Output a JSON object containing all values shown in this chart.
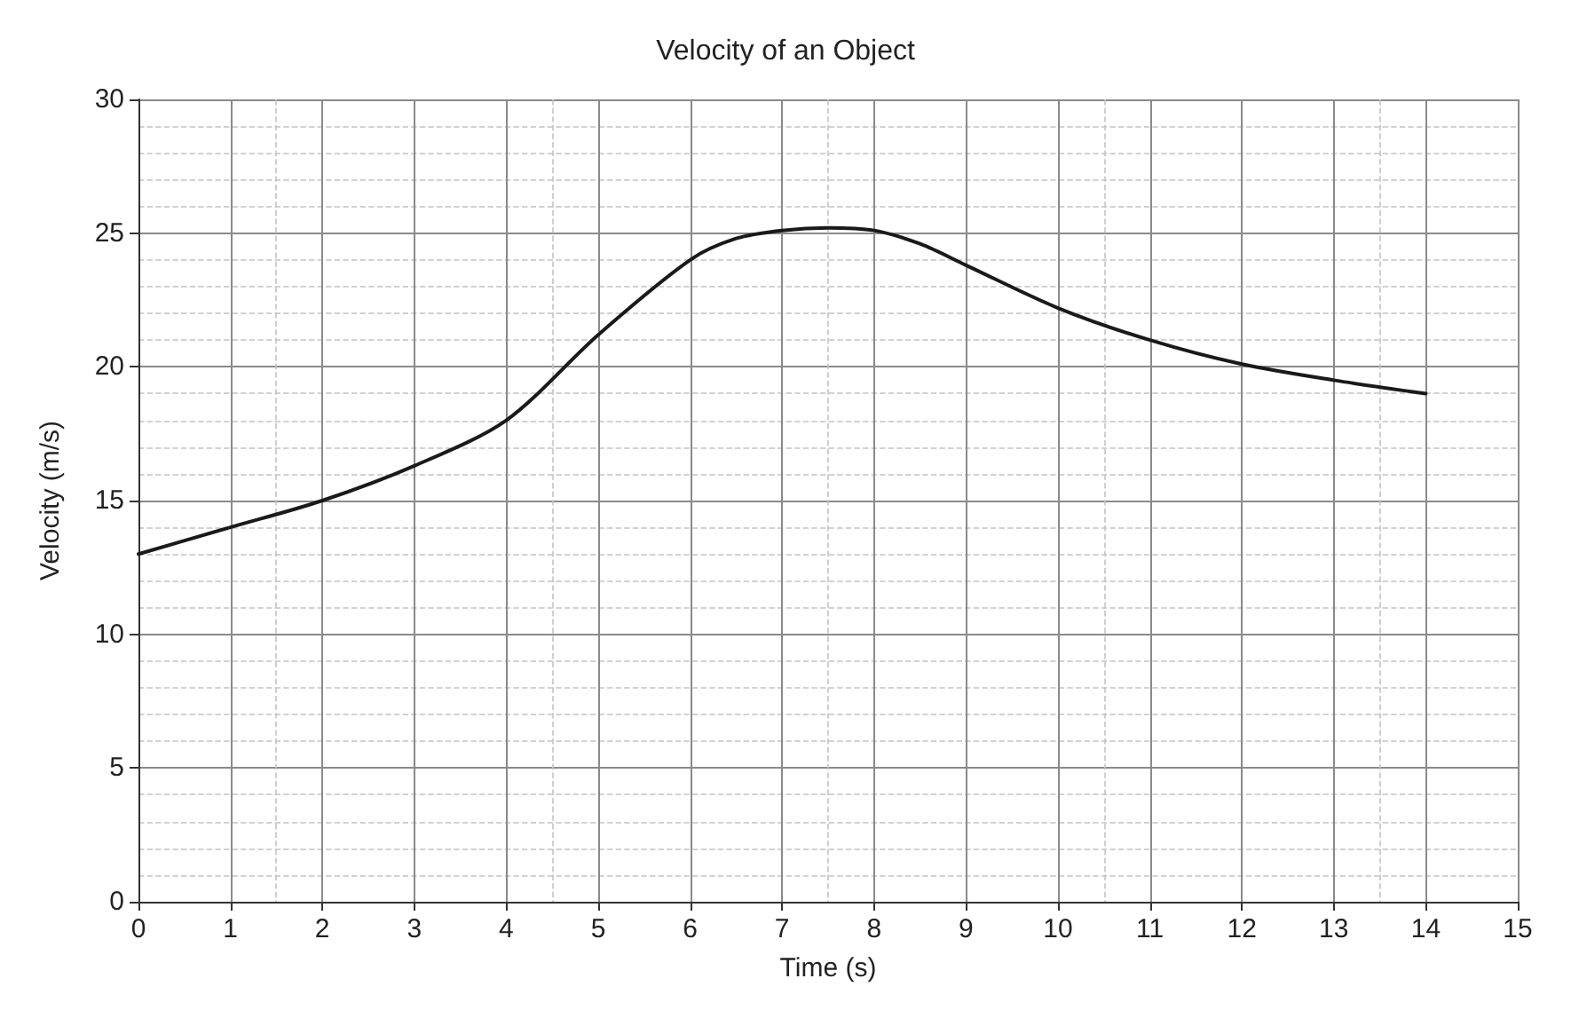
{
  "chart_data": {
    "type": "line",
    "title": "Velocity of an Object",
    "xlabel": "Time (s)",
    "ylabel": "Velocity (m/s)",
    "x": [
      0,
      1,
      2,
      3,
      4,
      5,
      6,
      6.5,
      7,
      7.5,
      8,
      8.5,
      9,
      10,
      11,
      12,
      13,
      14
    ],
    "series": [
      {
        "color": "#1a1a1a",
        "values": [
          13,
          14,
          15,
          16.3,
          18,
          21.2,
          24,
          24.8,
          25.1,
          25.2,
          25.1,
          24.6,
          23.8,
          22.2,
          21,
          20.1,
          19.5,
          19
        ]
      }
    ],
    "xlim": [
      0,
      15
    ],
    "xticks": [
      0,
      1,
      2,
      3,
      4,
      5,
      6,
      7,
      8,
      9,
      10,
      11,
      12,
      13,
      14,
      15
    ],
    "ylim": [
      0,
      30
    ],
    "yticks": [
      0,
      5,
      10,
      15,
      20,
      25,
      30
    ],
    "grid": true,
    "marker": "none",
    "line_style": "solid"
  }
}
